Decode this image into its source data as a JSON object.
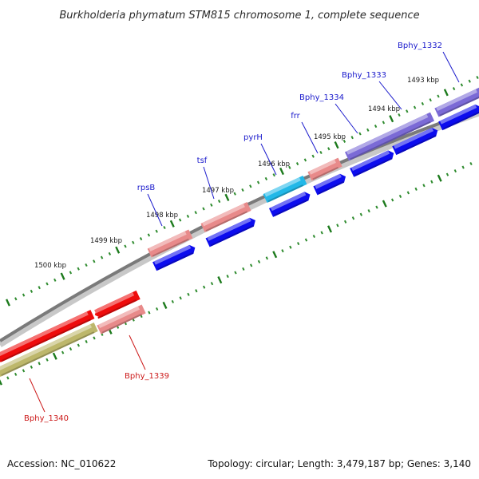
{
  "title": "Burkholderia phymatum STM815 chromosome 1, complete sequence",
  "footer": {
    "accession": "Accession: NC_010622",
    "summary": "Topology: circular; Length: 3,479,187 bp; Genes: 3,140"
  },
  "colors": {
    "backbone": "#7a7a7a",
    "tick_major": "#1c7a1c",
    "tick_minor": "#2e8b2e",
    "label_forward": "#1a1acc",
    "label_reverse": "#cc1a1a",
    "forward_cds": "#0c0cee",
    "reverse_cds": "#ee0c0c"
  },
  "scale_labels": [
    "1493 kbp",
    "1494 kbp",
    "1495 kbp",
    "1496 kbp",
    "1497 kbp",
    "1498 kbp",
    "1499 kbp",
    "1500 kbp"
  ],
  "genes": [
    {
      "label": "Bphy_1332",
      "strand": "forward",
      "feature_color": "#7b6ad6"
    },
    {
      "label": "Bphy_1333",
      "strand": "forward",
      "feature_color": "#7b6ad6"
    },
    {
      "label": "Bphy_1334",
      "strand": "forward",
      "feature_color": "#7b6ad6"
    },
    {
      "label": "frr",
      "strand": "forward",
      "feature_color": "#e88a8a"
    },
    {
      "label": "pyrH",
      "strand": "forward",
      "feature_color": "#22b8e8"
    },
    {
      "label": "tsf",
      "strand": "forward",
      "feature_color": "#e88a8a"
    },
    {
      "label": "rpsB",
      "strand": "forward",
      "feature_color": "#e88a8a"
    },
    {
      "label": "Bphy_1339",
      "strand": "reverse",
      "feature_color": "#e88a8a"
    },
    {
      "label": "Bphy_1340",
      "strand": "reverse",
      "feature_color": "#bdb76b"
    }
  ]
}
